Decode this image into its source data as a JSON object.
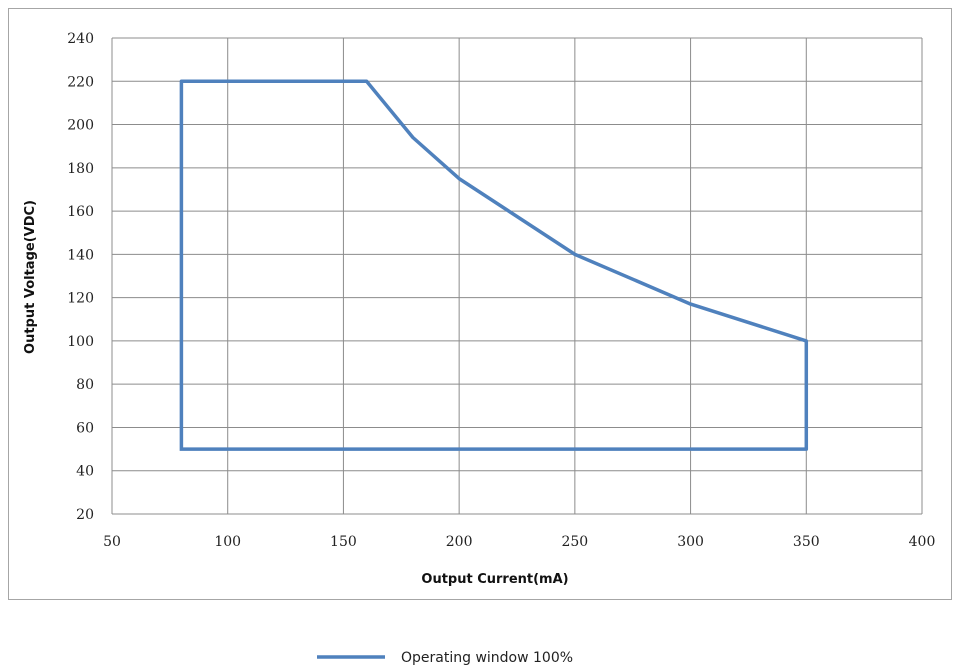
{
  "chart_data": {
    "type": "line",
    "xlabel": "Output Current(mA)",
    "ylabel": "Output Voltage(VDC)",
    "xlim": [
      50,
      400
    ],
    "ylim": [
      20,
      240
    ],
    "xticks": [
      50,
      100,
      150,
      200,
      250,
      300,
      350,
      400
    ],
    "yticks": [
      20,
      40,
      60,
      80,
      100,
      120,
      140,
      160,
      180,
      200,
      220,
      240
    ],
    "grid": true,
    "legend_position": "bottom-center",
    "series": [
      {
        "name": "Operating window 100%",
        "color": "#4f81bd",
        "x": [
          80,
          80,
          160,
          180,
          200,
          250,
          300,
          350,
          350,
          80
        ],
        "y": [
          50,
          220,
          220,
          194,
          175,
          140,
          117,
          100,
          50,
          50
        ]
      }
    ]
  }
}
